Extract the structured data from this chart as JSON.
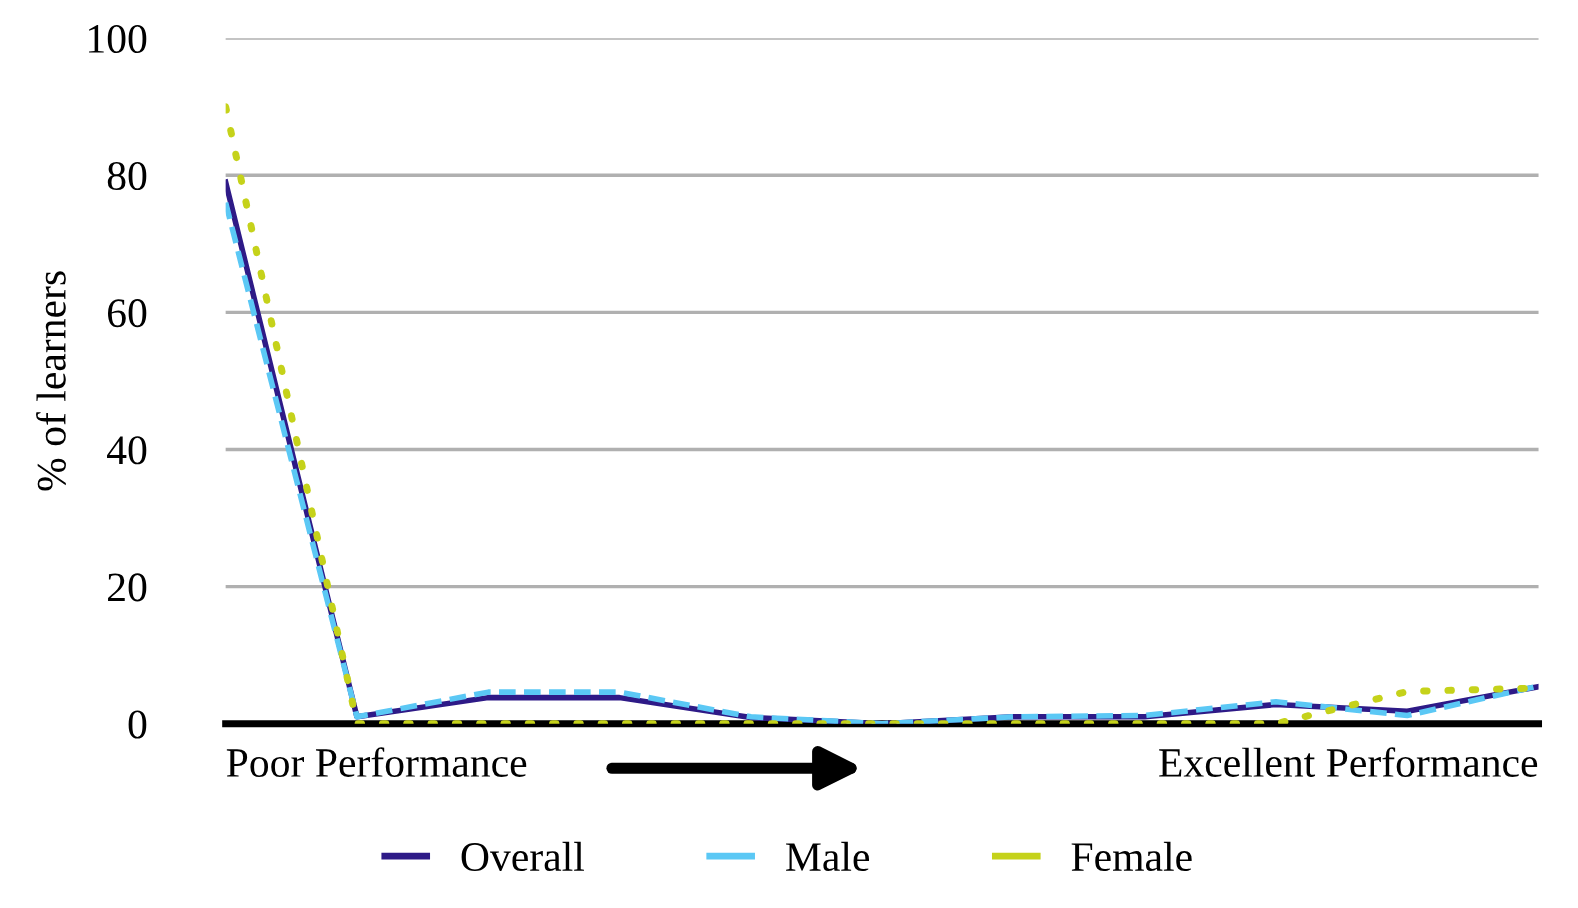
{
  "chart_data": {
    "type": "line",
    "ylabel": "% of learners",
    "categories": [
      null,
      null,
      null,
      null,
      null,
      null,
      null,
      null,
      null,
      null,
      null
    ],
    "series": [
      {
        "name": "Overall",
        "color": "#2e1a87",
        "line_style": "solid",
        "values": [
          79,
          1,
          3.8,
          3.8,
          0.9,
          0,
          1,
          1,
          2.8,
          1.8,
          5.4
        ]
      },
      {
        "name": "Male",
        "color": "#5bc8f5",
        "line_style": "dashed",
        "values": [
          76,
          1,
          4.6,
          4.6,
          1,
          0,
          1,
          1.2,
          3.2,
          1.2,
          5.5
        ]
      },
      {
        "name": "Female",
        "color": "#c5d21a",
        "line_style": "dotted",
        "values": [
          90,
          0,
          0,
          0,
          0,
          0,
          0,
          0,
          0,
          4.7,
          5.2
        ]
      }
    ],
    "ylim": [
      0,
      100
    ],
    "yticks": [
      0,
      20,
      40,
      60,
      80,
      100
    ],
    "grid": "y",
    "legend": "bottom",
    "marker": "none",
    "annotations": [
      "Poor Performance",
      "Excellent Performance"
    ]
  }
}
